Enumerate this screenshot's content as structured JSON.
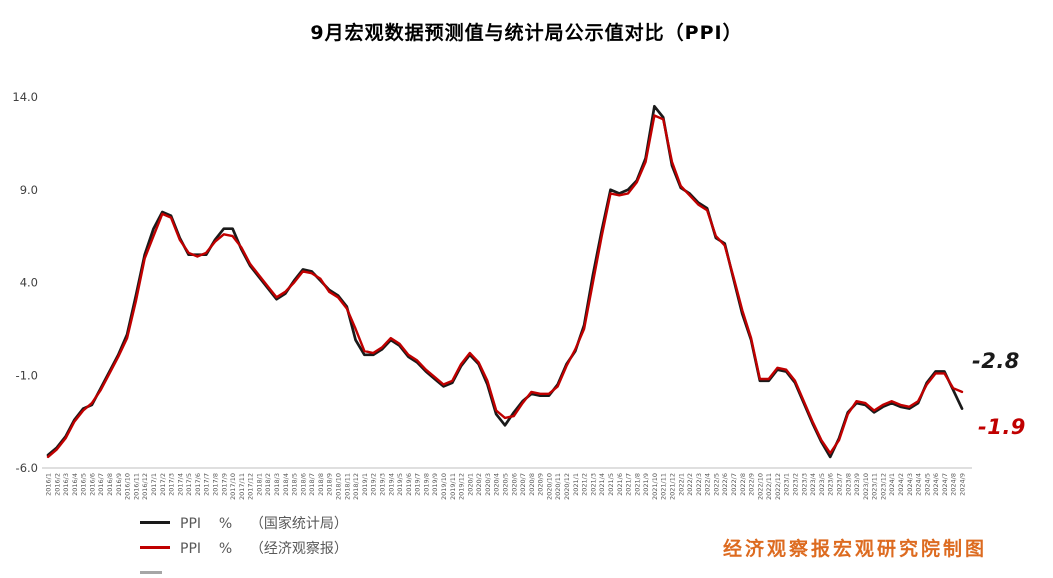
{
  "title": "9月宏观数据预测值与统计局公示值对比（PPI）",
  "annotations": {
    "official_value": "-2.8",
    "forecast_value": "-1.9"
  },
  "legend": {
    "items": [
      {
        "label": "PPI    %    （国家统计局）",
        "color": "#1a1a1a"
      },
      {
        "label": "PPI    %    （经济观察报）",
        "color": "#c00000"
      },
      {
        "label": "",
        "color": "#a6a6a6"
      }
    ]
  },
  "credit": "经济观察报宏观研究院制图",
  "colors": {
    "official_line": "#1a1a1a",
    "forecast_line": "#c00000",
    "axis": "#bfbfbf",
    "tick_text": "#404040",
    "x_label_text": "#595959",
    "credit_text": "#dd6b20"
  },
  "chart_data": {
    "type": "line",
    "title": "9月宏观数据预测值与统计局公示值对比（PPI）",
    "xlabel": "",
    "ylabel": "PPI %",
    "ylim": [
      -6.0,
      14.0
    ],
    "y_ticks": [
      14.0,
      9.0,
      4.0,
      -1.0,
      -6.0
    ],
    "grid": false,
    "legend_position": "bottom-left",
    "categories": [
      "2016/1",
      "2016/2",
      "2016/3",
      "2016/4",
      "2016/5",
      "2016/6",
      "2016/7",
      "2016/8",
      "2016/9",
      "2016/10",
      "2016/11",
      "2016/12",
      "2017/1",
      "2017/2",
      "2017/3",
      "2017/4",
      "2017/5",
      "2017/6",
      "2017/7",
      "2017/8",
      "2017/9",
      "2017/10",
      "2017/11",
      "2017/12",
      "2018/1",
      "2018/2",
      "2018/3",
      "2018/4",
      "2018/5",
      "2018/6",
      "2018/7",
      "2018/8",
      "2018/9",
      "2018/10",
      "2018/11",
      "2018/12",
      "2019/1",
      "2019/2",
      "2019/3",
      "2019/4",
      "2019/5",
      "2019/6",
      "2019/7",
      "2019/8",
      "2019/9",
      "2019/10",
      "2019/11",
      "2019/12",
      "2020/1",
      "2020/2",
      "2020/3",
      "2020/4",
      "2020/5",
      "2020/6",
      "2020/7",
      "2020/8",
      "2020/9",
      "2020/10",
      "2020/11",
      "2020/12",
      "2021/1",
      "2021/2",
      "2021/3",
      "2021/4",
      "2021/5",
      "2021/6",
      "2021/7",
      "2021/8",
      "2021/9",
      "2021/10",
      "2021/11",
      "2021/12",
      "2022/1",
      "2022/2",
      "2022/3",
      "2022/4",
      "2022/5",
      "2022/6",
      "2022/7",
      "2022/8",
      "2022/9",
      "2022/10",
      "2022/11",
      "2022/12",
      "2023/1",
      "2023/2",
      "2023/3",
      "2023/4",
      "2023/5",
      "2023/6",
      "2023/7",
      "2023/8",
      "2023/9",
      "2023/10",
      "2023/11",
      "2023/12",
      "2024/1",
      "2024/2",
      "2024/3",
      "2024/4",
      "2024/5",
      "2024/6",
      "2024/7",
      "2024/8",
      "2024/9"
    ],
    "series": [
      {
        "name": "PPI % （国家统计局）",
        "color": "#1a1a1a",
        "values": [
          -5.3,
          -4.9,
          -4.3,
          -3.4,
          -2.8,
          -2.6,
          -1.7,
          -0.8,
          0.1,
          1.2,
          3.3,
          5.5,
          6.9,
          7.8,
          7.6,
          6.4,
          5.5,
          5.5,
          5.5,
          6.3,
          6.9,
          6.9,
          5.8,
          4.9,
          4.3,
          3.7,
          3.1,
          3.4,
          4.1,
          4.7,
          4.6,
          4.1,
          3.6,
          3.3,
          2.7,
          0.9,
          0.1,
          0.1,
          0.4,
          0.9,
          0.6,
          0.0,
          -0.3,
          -0.8,
          -1.2,
          -1.6,
          -1.4,
          -0.5,
          0.1,
          -0.4,
          -1.5,
          -3.1,
          -3.7,
          -3.0,
          -2.4,
          -2.0,
          -2.1,
          -2.1,
          -1.5,
          -0.4,
          0.3,
          1.7,
          4.4,
          6.8,
          9.0,
          8.8,
          9.0,
          9.5,
          10.7,
          13.5,
          12.9,
          10.3,
          9.1,
          8.8,
          8.3,
          8.0,
          6.4,
          6.1,
          4.2,
          2.3,
          0.9,
          -1.3,
          -1.3,
          -0.7,
          -0.8,
          -1.4,
          -2.5,
          -3.6,
          -4.6,
          -5.4,
          -4.4,
          -3.0,
          -2.5,
          -2.6,
          -3.0,
          -2.7,
          -2.5,
          -2.7,
          -2.8,
          -2.5,
          -1.4,
          -0.8,
          -0.8,
          -1.8,
          -2.8
        ]
      },
      {
        "name": "PPI % （经济观察报）",
        "color": "#c00000",
        "values": [
          -5.4,
          -5.0,
          -4.4,
          -3.5,
          -2.9,
          -2.5,
          -1.8,
          -0.9,
          0.0,
          1.0,
          3.0,
          5.3,
          6.5,
          7.7,
          7.5,
          6.3,
          5.6,
          5.4,
          5.6,
          6.2,
          6.6,
          6.5,
          5.9,
          5.0,
          4.4,
          3.8,
          3.2,
          3.5,
          4.0,
          4.6,
          4.5,
          4.2,
          3.5,
          3.2,
          2.6,
          1.5,
          0.3,
          0.2,
          0.5,
          1.0,
          0.7,
          0.1,
          -0.2,
          -0.7,
          -1.1,
          -1.5,
          -1.3,
          -0.4,
          0.2,
          -0.3,
          -1.3,
          -2.9,
          -3.3,
          -3.2,
          -2.5,
          -1.9,
          -2.0,
          -2.0,
          -1.6,
          -0.5,
          0.4,
          1.5,
          4.0,
          6.5,
          8.8,
          8.7,
          8.8,
          9.4,
          10.5,
          13.0,
          12.8,
          10.5,
          9.2,
          8.7,
          8.2,
          7.9,
          6.5,
          6.0,
          4.3,
          2.5,
          1.0,
          -1.2,
          -1.2,
          -0.6,
          -0.7,
          -1.3,
          -2.4,
          -3.5,
          -4.5,
          -5.2,
          -4.5,
          -3.1,
          -2.4,
          -2.5,
          -2.9,
          -2.6,
          -2.4,
          -2.6,
          -2.7,
          -2.4,
          -1.5,
          -0.9,
          -0.9,
          -1.7,
          -1.9
        ]
      }
    ]
  }
}
